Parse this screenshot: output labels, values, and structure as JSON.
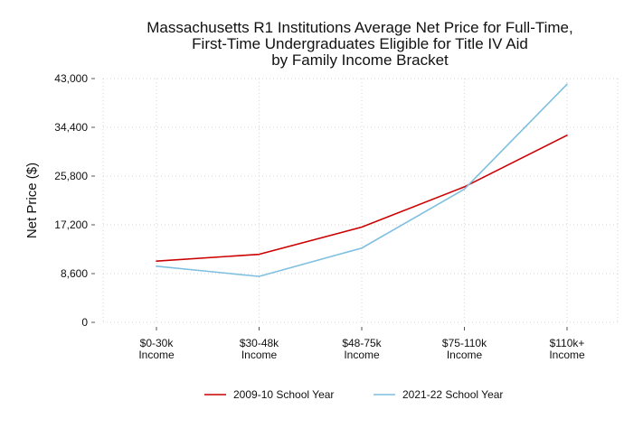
{
  "chart_data": {
    "type": "line",
    "title_lines": [
      "Massachusetts R1 Institutions Average Net Price for Full-Time,",
      "First-Time Undergraduates Eligible for Title IV Aid",
      "by Family Income Bracket"
    ],
    "ylabel": "Net Price ($)",
    "xlabel": "",
    "categories": [
      [
        "$0-30k",
        "Income"
      ],
      [
        "$30-48k",
        "Income"
      ],
      [
        "$48-75k",
        "Income"
      ],
      [
        "$75-110k",
        "Income"
      ],
      [
        "$110k+",
        "Income"
      ]
    ],
    "y_ticks": [
      0,
      8600,
      17200,
      25800,
      34400,
      43000
    ],
    "y_tick_labels": [
      "0",
      "8,600",
      "17,200",
      "25,800",
      "34,400",
      "43,000"
    ],
    "ylim": [
      0,
      43000
    ],
    "grid": true,
    "legend_position": "bottom",
    "series": [
      {
        "name": "2009-10 School Year",
        "color": "#cc0000",
        "values": [
          10800,
          12000,
          16800,
          23900,
          33000
        ]
      },
      {
        "name": "2021-22 School Year",
        "color": "#7fbfdf",
        "values": [
          9900,
          8100,
          13100,
          23500,
          42000
        ]
      }
    ]
  }
}
